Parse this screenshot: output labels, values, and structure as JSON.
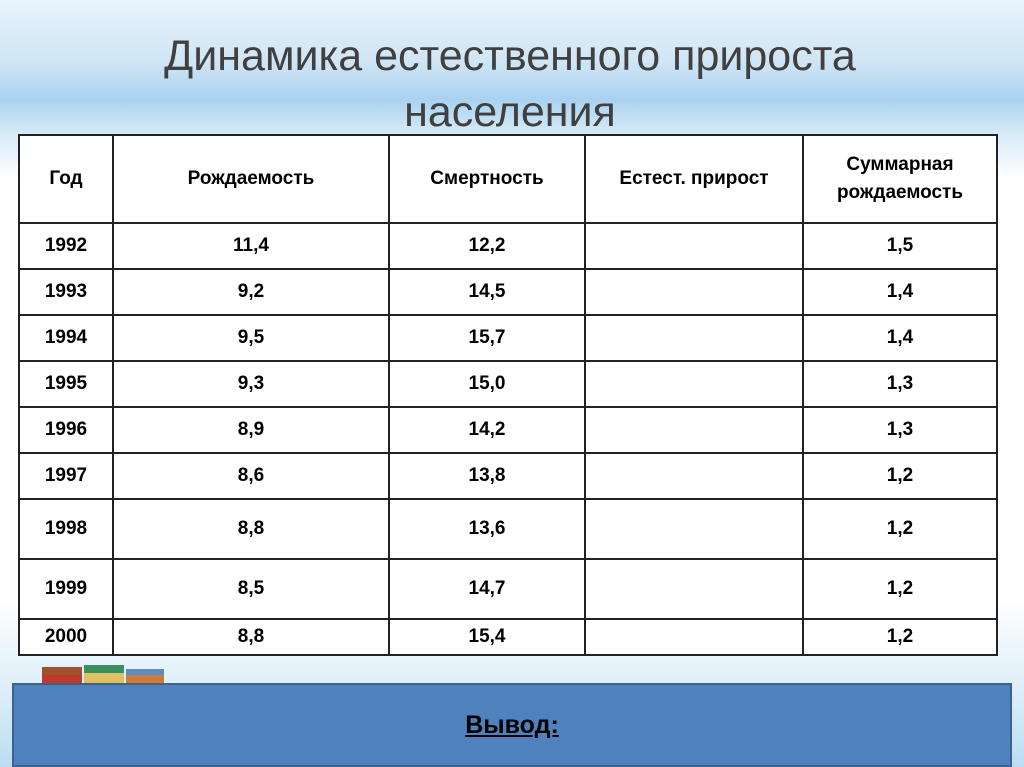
{
  "title": "Динамика естественного прироста населения",
  "table": {
    "headers": {
      "year": "Год",
      "birth": "Рождаемость",
      "death": "Смертность",
      "natural": "Естест. прирост",
      "total_line1": "Суммарная",
      "total_line2": "рождаемость"
    },
    "rows": [
      {
        "year": "1992",
        "birth": "11,4",
        "death": "12,2",
        "natural": "",
        "total": "1,5"
      },
      {
        "year": "1993",
        "birth": "9,2",
        "death": "14,5",
        "natural": "",
        "total": "1,4"
      },
      {
        "year": "1994",
        "birth": "9,5",
        "death": "15,7",
        "natural": "",
        "total": "1,4"
      },
      {
        "year": "1995",
        "birth": "9,3",
        "death": "15,0",
        "natural": "",
        "total": "1,3"
      },
      {
        "year": "1996",
        "birth": "8,9",
        "death": "14,2",
        "natural": "",
        "total": "1,3"
      },
      {
        "year": "1997",
        "birth": "8,6",
        "death": "13,8",
        "natural": "",
        "total": "1,2"
      },
      {
        "year": "1998",
        "birth": "8,8",
        "death": "13,6",
        "natural": "",
        "total": "1,2"
      },
      {
        "year": "1999",
        "birth": "8,5",
        "death": "14,7",
        "natural": "",
        "total": "1,2"
      },
      {
        "year": "2000",
        "birth": "8,8",
        "death": "15,4",
        "natural": "",
        "total": "1,2"
      }
    ]
  },
  "conclusion": {
    "label": "Вывод:",
    "color": "#4f81bd"
  },
  "decoration": {
    "icon": "books-icon"
  }
}
